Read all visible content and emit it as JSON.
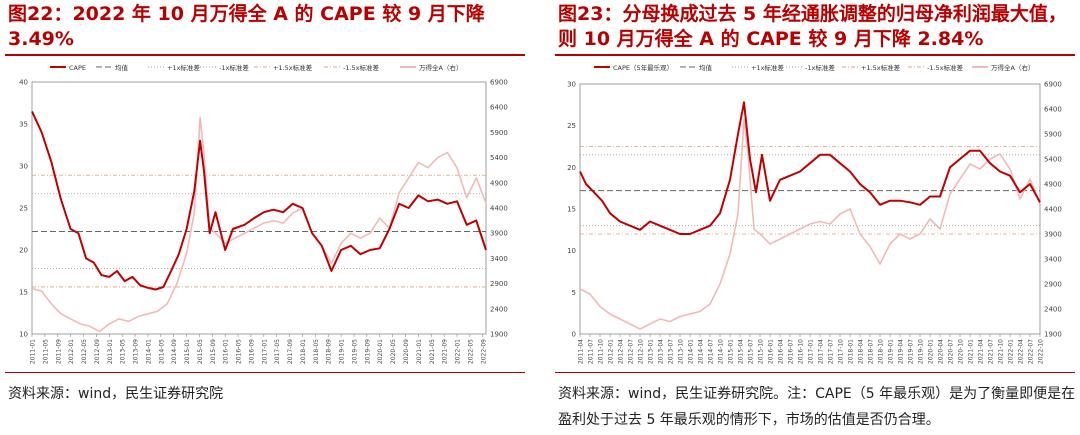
{
  "charts": [
    {
      "id": "left",
      "title": "图22：2022 年 10 月万得全 A 的 CAPE 较 9 月下降 3.49%",
      "source": "资料来源：wind，民生证券研究院",
      "legend": [
        "CAPE",
        "均值",
        "+1x标准差",
        "-1x标准差",
        "+1.5x标准差",
        "-1.5x标准差",
        "万得全A（右）"
      ],
      "x_ticks": [
        "2011-01",
        "2011-05",
        "2011-09",
        "2012-01",
        "2012-05",
        "2012-09",
        "2013-01",
        "2013-05",
        "2013-09",
        "2014-01",
        "2014-05",
        "2014-09",
        "2015-01",
        "2015-05",
        "2015-09",
        "2016-01",
        "2016-05",
        "2016-09",
        "2017-01",
        "2017-05",
        "2017-09",
        "2018-01",
        "2018-05",
        "2018-09",
        "2019-01",
        "2019-05",
        "2019-09",
        "2020-01",
        "2020-05",
        "2020-09",
        "2021-01",
        "2021-05",
        "2021-09",
        "2022-01",
        "2022-05",
        "2022-09"
      ],
      "y_left_ticks": [
        "10",
        "15",
        "20",
        "25",
        "30",
        "35",
        "40"
      ],
      "y_right_ticks": [
        "1900",
        "2400",
        "2900",
        "3400",
        "3900",
        "4400",
        "4900",
        "5400",
        "5900",
        "6400",
        "6900"
      ]
    },
    {
      "id": "right",
      "title": "图23：分母换成过去 5 年经通胀调整的归母净利润最大值，则 10 月万得全 A 的 CAPE 较 9 月下降 2.84%",
      "source": "资料来源：wind，民生证券研究院。注：CAPE（5 年最乐观）是为了衡量即便是在盈利处于过去 5 年最乐观的情形下，市场的估值是否仍合理。",
      "legend": [
        "CAPE（5年最乐观）",
        "均值",
        "+1x标准差",
        "-1x标准差",
        "+1.5x标准差",
        "-1.5x标准差",
        "万得全A（右）"
      ],
      "x_ticks": [
        "2011-04",
        "2011-07",
        "2011-10",
        "2012-01",
        "2012-04",
        "2012-07",
        "2012-10",
        "2013-01",
        "2013-04",
        "2013-07",
        "2013-10",
        "2014-01",
        "2014-04",
        "2014-07",
        "2014-10",
        "2015-01",
        "2015-04",
        "2015-07",
        "2015-10",
        "2016-01",
        "2016-04",
        "2016-07",
        "2016-10",
        "2017-01",
        "2017-04",
        "2017-07",
        "2017-10",
        "2018-01",
        "2018-04",
        "2018-07",
        "2018-10",
        "2019-01",
        "2019-04",
        "2019-07",
        "2019-10",
        "2020-01",
        "2020-04",
        "2020-07",
        "2020-10",
        "2021-01",
        "2021-04",
        "2021-07",
        "2021-10",
        "2022-01",
        "2022-04",
        "2022-07",
        "2022-10"
      ],
      "y_left_ticks": [
        "0",
        "5",
        "10",
        "15",
        "20",
        "25",
        "30"
      ],
      "y_right_ticks": [
        "1900",
        "2400",
        "2900",
        "3400",
        "3900",
        "4400",
        "4900",
        "5400",
        "5900",
        "6400",
        "6900"
      ]
    }
  ],
  "chart_data": [
    {
      "type": "line",
      "x_range": [
        "2011-01",
        "2022-10"
      ],
      "ylim_left": [
        10,
        40
      ],
      "ylim_right": [
        1900,
        6900
      ],
      "colors": {
        "cape": "#c00000",
        "index": "#f2b8b8",
        "mean": "#666666",
        "sd1": "#9a9a9a",
        "sd15": "#e0a070"
      },
      "reference_lines": {
        "mean": 22.2,
        "plus_1sd": 26.7,
        "minus_1sd": 17.8,
        "plus_1_5sd": 28.9,
        "minus_1_5sd": 15.6
      },
      "series": [
        {
          "name": "CAPE",
          "axis": "left",
          "x": [
            2011.0,
            2011.25,
            2011.5,
            2011.75,
            2012.0,
            2012.2,
            2012.4,
            2012.6,
            2012.8,
            2013.0,
            2013.2,
            2013.4,
            2013.6,
            2013.8,
            2014.0,
            2014.2,
            2014.4,
            2014.6,
            2014.8,
            2015.0,
            2015.2,
            2015.35,
            2015.45,
            2015.6,
            2015.75,
            2016.0,
            2016.2,
            2016.5,
            2016.75,
            2017.0,
            2017.25,
            2017.5,
            2017.75,
            2018.0,
            2018.25,
            2018.5,
            2018.75,
            2019.0,
            2019.25,
            2019.5,
            2019.75,
            2020.0,
            2020.25,
            2020.5,
            2020.75,
            2021.0,
            2021.25,
            2021.5,
            2021.75,
            2022.0,
            2022.25,
            2022.5,
            2022.75
          ],
          "values": [
            36.5,
            34.0,
            30.5,
            26.0,
            22.5,
            22.0,
            19.0,
            18.5,
            17.0,
            16.8,
            17.5,
            16.3,
            16.8,
            15.8,
            15.5,
            15.3,
            15.6,
            17.5,
            19.5,
            22.5,
            27.0,
            33.0,
            29.5,
            22.0,
            24.5,
            20.0,
            22.5,
            23.0,
            23.8,
            24.5,
            24.8,
            24.5,
            25.5,
            25.0,
            22.0,
            20.5,
            17.5,
            20.0,
            20.5,
            19.5,
            20.0,
            20.2,
            22.5,
            25.5,
            25.0,
            26.5,
            25.8,
            26.0,
            25.5,
            25.8,
            23.0,
            23.5,
            20.0
          ]
        },
        {
          "name": "万得全A（右）",
          "axis": "right",
          "x": [
            2011.0,
            2011.25,
            2011.5,
            2011.75,
            2012.0,
            2012.25,
            2012.5,
            2012.75,
            2013.0,
            2013.25,
            2013.5,
            2013.75,
            2014.0,
            2014.25,
            2014.5,
            2014.75,
            2015.0,
            2015.2,
            2015.35,
            2015.45,
            2015.6,
            2015.75,
            2016.0,
            2016.25,
            2016.5,
            2016.75,
            2017.0,
            2017.25,
            2017.5,
            2017.75,
            2018.0,
            2018.25,
            2018.5,
            2018.75,
            2019.0,
            2019.25,
            2019.5,
            2019.75,
            2020.0,
            2020.25,
            2020.5,
            2020.75,
            2021.0,
            2021.25,
            2021.5,
            2021.75,
            2022.0,
            2022.25,
            2022.5,
            2022.75
          ],
          "values": [
            2800,
            2750,
            2500,
            2300,
            2200,
            2100,
            2050,
            1950,
            2100,
            2200,
            2150,
            2250,
            2300,
            2350,
            2500,
            2900,
            3500,
            4300,
            6200,
            5500,
            4000,
            3900,
            3700,
            3800,
            3900,
            4000,
            4100,
            4150,
            4100,
            4300,
            4400,
            3900,
            3650,
            3300,
            3700,
            3900,
            3800,
            3900,
            4200,
            4000,
            4700,
            5000,
            5300,
            5200,
            5400,
            5500,
            5200,
            4600,
            5000,
            4500
          ]
        }
      ]
    },
    {
      "type": "line",
      "x_range": [
        "2011-04",
        "2022-10"
      ],
      "ylim_left": [
        0,
        30
      ],
      "ylim_right": [
        1900,
        6900
      ],
      "colors": {
        "cape": "#c00000",
        "index": "#f2b8b8",
        "mean": "#666666",
        "sd1": "#9a9a9a",
        "sd15": "#e0a070"
      },
      "reference_lines": {
        "mean": 17.2,
        "plus_1sd": 21.5,
        "minus_1sd": 13.0,
        "plus_1_5sd": 22.5,
        "minus_1_5sd": 12.0
      },
      "series": [
        {
          "name": "CAPE（5年最乐观）",
          "axis": "left",
          "x": [
            2011.25,
            2011.4,
            2011.6,
            2011.8,
            2012.0,
            2012.25,
            2012.5,
            2012.75,
            2013.0,
            2013.25,
            2013.5,
            2013.75,
            2014.0,
            2014.25,
            2014.5,
            2014.75,
            2015.0,
            2015.2,
            2015.35,
            2015.5,
            2015.65,
            2015.8,
            2016.0,
            2016.25,
            2016.5,
            2016.75,
            2017.0,
            2017.25,
            2017.5,
            2017.75,
            2018.0,
            2018.25,
            2018.5,
            2018.75,
            2019.0,
            2019.25,
            2019.5,
            2019.75,
            2020.0,
            2020.25,
            2020.5,
            2020.75,
            2021.0,
            2021.25,
            2021.5,
            2021.75,
            2022.0,
            2022.25,
            2022.5,
            2022.75
          ],
          "values": [
            19.5,
            18.0,
            17.0,
            16.0,
            14.5,
            13.5,
            13.0,
            12.5,
            13.5,
            13.0,
            12.5,
            12.0,
            12.0,
            12.5,
            13.0,
            14.5,
            18.5,
            24.0,
            27.8,
            21.0,
            17.0,
            21.5,
            16.0,
            18.5,
            19.0,
            19.5,
            20.5,
            21.5,
            21.5,
            20.5,
            19.5,
            18.0,
            17.0,
            15.5,
            16.0,
            16.0,
            15.8,
            15.5,
            16.5,
            16.5,
            20.0,
            21.0,
            22.0,
            22.0,
            20.5,
            19.5,
            19.0,
            17.0,
            18.0,
            15.8
          ]
        },
        {
          "name": "万得全A（右）",
          "axis": "right",
          "x": [
            2011.25,
            2011.5,
            2011.75,
            2012.0,
            2012.25,
            2012.5,
            2012.75,
            2013.0,
            2013.25,
            2013.5,
            2013.75,
            2014.0,
            2014.25,
            2014.5,
            2014.75,
            2015.0,
            2015.2,
            2015.35,
            2015.45,
            2015.6,
            2015.75,
            2016.0,
            2016.25,
            2016.5,
            2016.75,
            2017.0,
            2017.25,
            2017.5,
            2017.75,
            2018.0,
            2018.25,
            2018.5,
            2018.75,
            2019.0,
            2019.25,
            2019.5,
            2019.75,
            2020.0,
            2020.25,
            2020.5,
            2020.75,
            2021.0,
            2021.25,
            2021.5,
            2021.75,
            2022.0,
            2022.25,
            2022.5,
            2022.75
          ],
          "values": [
            2800,
            2700,
            2450,
            2300,
            2200,
            2100,
            2000,
            2100,
            2200,
            2150,
            2250,
            2300,
            2350,
            2500,
            2900,
            3500,
            4300,
            6200,
            5500,
            4000,
            3900,
            3700,
            3800,
            3900,
            4000,
            4100,
            4150,
            4100,
            4300,
            4400,
            3900,
            3650,
            3300,
            3700,
            3900,
            3800,
            3900,
            4200,
            4000,
            4700,
            5000,
            5300,
            5200,
            5400,
            5500,
            5200,
            4600,
            5000,
            4500
          ]
        }
      ]
    }
  ]
}
